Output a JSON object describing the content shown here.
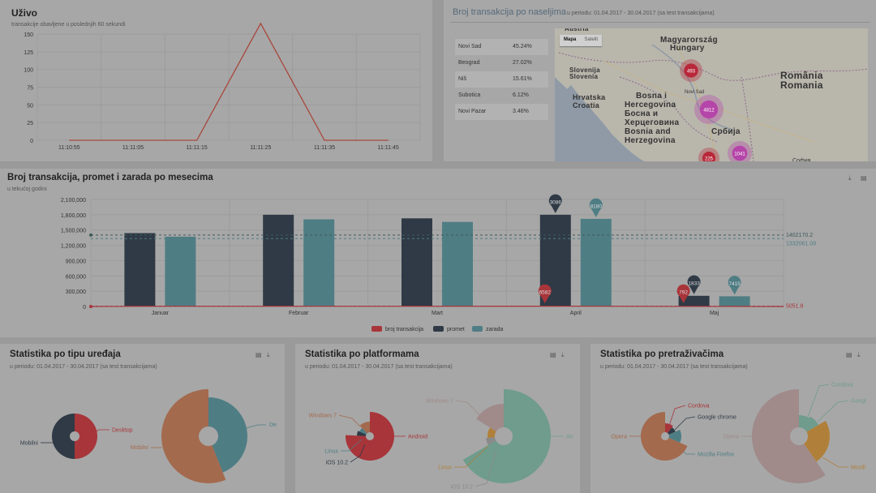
{
  "live": {
    "title": "Uživo",
    "subtitle": "transakcije obavljene u poslednjih 60 sekundi",
    "chart_data": {
      "type": "line",
      "x": [
        "11:10:55",
        "11:11:05",
        "11:11:15",
        "11:11:25",
        "11:11:35",
        "11:11:45"
      ],
      "y_ticks": [
        0,
        25,
        50,
        75,
        100,
        125,
        150
      ],
      "ylim": [
        0,
        150
      ],
      "series": [
        {
          "color": "#a8483d",
          "points": [
            [
              0,
              0
            ],
            [
              1,
              0
            ],
            [
              2,
              0
            ],
            [
              3,
              165
            ],
            [
              4,
              0
            ],
            [
              5,
              0
            ]
          ]
        }
      ]
    }
  },
  "city": {
    "title": "Broj transakcija po naseljima",
    "subtitle": "u periodu: 01.04.2017 - 30.04.2017 (sa test transakcijama)",
    "rows": [
      {
        "name": "Novi Sad",
        "pct": "45.24%"
      },
      {
        "name": "Beograd",
        "pct": "27.02%"
      },
      {
        "name": "Niš",
        "pct": "15.61%"
      },
      {
        "name": "Subotica",
        "pct": "6.12%"
      },
      {
        "name": "Novi Pazar",
        "pct": "3.46%"
      }
    ],
    "map": {
      "tab_map": "Mapa",
      "tab_sat": "Satelit",
      "labels": [
        {
          "text": "Austria"
        },
        {
          "text": "Magyarország"
        },
        {
          "text": "Hungary"
        },
        {
          "text": "Slovenija"
        },
        {
          "text": "Slovenia"
        },
        {
          "text": "Hrvatska"
        },
        {
          "text": "Croatia"
        },
        {
          "text": "Bosna i"
        },
        {
          "text": "Hercegovina"
        },
        {
          "text": "Босна и"
        },
        {
          "text": "Херцеговина"
        },
        {
          "text": "Bosnia and"
        },
        {
          "text": "Herzegovina"
        },
        {
          "text": "România"
        },
        {
          "text": "Romania"
        },
        {
          "text": "Србија"
        },
        {
          "text": "Novi Sad"
        },
        {
          "text": "София"
        }
      ],
      "markers": [
        {
          "label": "493"
        },
        {
          "label": "4812"
        },
        {
          "label": "1041"
        },
        {
          "label": "225"
        }
      ]
    }
  },
  "monthly": {
    "title": "Broj transakcija, promet i zarada po mesecima",
    "subtitle": "u tekućoj godini",
    "chart_data": {
      "type": "bar",
      "categories": [
        "Januar",
        "Februar",
        "Mart",
        "April",
        "Maj"
      ],
      "y_ticks": [
        "0",
        "300,000",
        "600,000",
        "900,000",
        "1,200,000",
        "1,500,000",
        "1,800,000",
        "2,100,000"
      ],
      "ylim": [
        0,
        2100000
      ],
      "series": [
        {
          "name": "broj transakcija",
          "color": "#a8353a",
          "values": [
            5000,
            5000,
            5000,
            6582,
            792
          ]
        },
        {
          "name": "promet",
          "color": "#2f3a46",
          "values": [
            1440000,
            1800000,
            1730000,
            1800000,
            210000
          ]
        },
        {
          "name": "zarada",
          "color": "#4f7d84",
          "values": [
            1370000,
            1710000,
            1660000,
            1720000,
            200000
          ]
        }
      ],
      "pins": [
        {
          "series": 1,
          "cat": 3,
          "label": "3086"
        },
        {
          "series": 2,
          "cat": 3,
          "label": "8180"
        },
        {
          "series": 0,
          "cat": 3,
          "label": "6582"
        },
        {
          "series": 0,
          "cat": 4,
          "label": "792"
        },
        {
          "series": 1,
          "cat": 4,
          "label": "1833"
        },
        {
          "series": 2,
          "cat": 4,
          "label": "7415"
        }
      ],
      "avg_lines": [
        {
          "value": 1402170.2,
          "label": "1402170.2",
          "color": "#3f5a5a"
        },
        {
          "value": 1332061.09,
          "label": "1332061.09",
          "color": "#4f7d84"
        },
        {
          "value": 5051.8,
          "label": "5051.8",
          "color": "#a8353a"
        }
      ]
    },
    "legend": [
      "broj transakcija",
      "promet",
      "zarada"
    ]
  },
  "devices": {
    "title": "Statistika po tipu uređaja",
    "subtitle": "u periodu: 01.04.2017 - 30.04.2017 (sa test transakcijama)",
    "chart_data": {
      "type": "pie",
      "small": [
        {
          "name": "Desktop",
          "value": 50,
          "color": "#a8353a"
        },
        {
          "name": "Mobilni",
          "value": 50,
          "color": "#2f3a46"
        }
      ],
      "large": [
        {
          "name": "De",
          "value": 44,
          "color": "#4f7d84"
        },
        {
          "name": "Mobilni",
          "value": 56,
          "color": "#a36a4e"
        }
      ]
    }
  },
  "platforms": {
    "title": "Statistika po platformama",
    "subtitle": "u periodu: 01.04.2017 - 30.04.2017 (sa test transakcijama)",
    "chart_data": {
      "type": "pie",
      "small": [
        {
          "name": "Android",
          "value": 50,
          "color": "#a8353a"
        },
        {
          "name": "iOS 10.2",
          "value": 4,
          "color": "#2f3a46"
        },
        {
          "name": "Linux",
          "value": 4,
          "color": "#4f7d84"
        },
        {
          "name": "Windows 7",
          "value": 8,
          "color": "#a36a4e"
        }
      ],
      "large": [
        {
          "name": "An",
          "value": 50,
          "color": "#6f9c8c"
        },
        {
          "name": "iOS 10.2",
          "value": 5,
          "color": "#8a8a8a"
        },
        {
          "name": "Linux",
          "value": 8,
          "color": "#b0803a"
        },
        {
          "name": "Windows 7",
          "value": 12,
          "color": "#a08a8a"
        }
      ]
    }
  },
  "browsers": {
    "title": "Statistika po pretraživačima",
    "subtitle": "u periodu: 01.04.2017 - 30.04.2017 (sa test transakcijama)",
    "chart_data": {
      "type": "pie",
      "small": [
        {
          "name": "Cordova",
          "value": 8,
          "color": "#a8353a"
        },
        {
          "name": "Google chrome",
          "value": 6,
          "color": "#2f3a46"
        },
        {
          "name": "Mozilla Firefox",
          "value": 10,
          "color": "#4f7d84"
        },
        {
          "name": "Opera",
          "value": 52,
          "color": "#a36a4e"
        }
      ],
      "large": [
        {
          "name": "Cordova",
          "value": 7,
          "color": "#6f9c8c"
        },
        {
          "name": "Googl",
          "value": 7,
          "color": "#6f9c8c"
        },
        {
          "name": "Mozill",
          "value": 20,
          "color": "#b0803a"
        },
        {
          "name": "Opera",
          "value": 50,
          "color": "#a08a8a"
        }
      ]
    }
  }
}
